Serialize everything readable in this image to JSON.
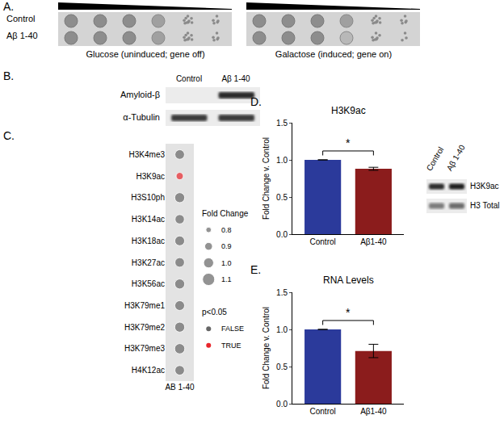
{
  "figure": {
    "A": {
      "panel_label": "A.",
      "rows": [
        "Control",
        "Aβ 1-40"
      ],
      "conditions": [
        "Glucose (uninduced; gene off)",
        "Galactose (induced; gene on)"
      ]
    },
    "B": {
      "panel_label": "B.",
      "lanes": [
        "Control",
        "Aβ 1-40"
      ],
      "bands": [
        "Amyloid-β",
        "α-Tubulin"
      ]
    }
  },
  "chart_data": [
    {
      "panel_label": "C.",
      "type": "scatter",
      "categories": [
        "H3K4me3",
        "H3K9ac",
        "H3S10ph",
        "H3K14ac",
        "H3K18ac",
        "H3K27ac",
        "H3K56ac",
        "H3K79me1",
        "H3K79me2",
        "H3K79me3",
        "H4K12ac"
      ],
      "x_categories": [
        "AB 1-40"
      ],
      "values": [
        0.98,
        0.88,
        1.0,
        0.97,
        0.99,
        0.98,
        1.0,
        0.99,
        1.0,
        1.01,
        0.98
      ],
      "significant": [
        false,
        true,
        false,
        false,
        false,
        false,
        false,
        false,
        false,
        false,
        false
      ],
      "size_legend": {
        "title": "Fold Change",
        "values": [
          0.8,
          0.9,
          {
            "value": 1,
            "label": "1.0"
          },
          1.1
        ]
      },
      "color_legend": {
        "title": "p<0.05",
        "labels": [
          "FALSE",
          "TRUE"
        ],
        "colors": [
          "#666666",
          "#e8262c"
        ]
      },
      "grid": false
    },
    {
      "panel_label": "D.",
      "type": "bar",
      "title": "H3K9ac",
      "categories": [
        "Control",
        "Aβ1-40"
      ],
      "values": [
        1.0,
        0.88
      ],
      "errors": [
        0,
        0.02
      ],
      "colors": [
        "#2b3a9b",
        "#8b1c1c"
      ],
      "ylim": [
        0,
        1.5
      ],
      "yticks": [
        {
          "value": 0,
          "label": "0.0"
        },
        {
          "value": 0.5,
          "label": "0.5"
        },
        {
          "value": 1,
          "label": "1.0"
        },
        {
          "value": 1.5,
          "label": "1.5"
        }
      ],
      "y_label": "Fold Change v. Control",
      "significance": {
        "label": "*",
        "between": [
          "Control",
          "Aβ1-40"
        ]
      },
      "blot": {
        "lanes": [
          "Control",
          "Aβ 1-40"
        ],
        "bands": [
          "H3K9ac",
          "H3 Total"
        ]
      },
      "grid": false
    },
    {
      "panel_label": "E.",
      "type": "bar",
      "title": "RNA Levels",
      "categories": [
        "Control",
        "Aβ1-40"
      ],
      "values": [
        1.0,
        0.71
      ],
      "errors": [
        0,
        0.09
      ],
      "colors": [
        "#2b3a9b",
        "#8b1c1c"
      ],
      "ylim": [
        0,
        1.5
      ],
      "yticks": [
        {
          "value": 0,
          "label": "0.0"
        },
        {
          "value": 0.5,
          "label": "0.5"
        },
        {
          "value": 1,
          "label": "1.0"
        },
        {
          "value": 1.5,
          "label": "1.5"
        }
      ],
      "y_label": "Fold Change v. Control",
      "significance": {
        "label": "*",
        "between": [
          "Control",
          "Aβ1-40"
        ]
      },
      "grid": false
    }
  ]
}
